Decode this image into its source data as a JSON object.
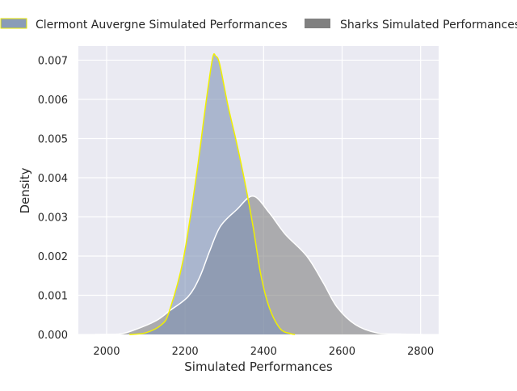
{
  "chart_data": {
    "type": "area",
    "title": "",
    "xlabel": "Simulated Performances",
    "ylabel": "Density",
    "xlim": [
      1928,
      2846
    ],
    "ylim": [
      0,
      0.00736
    ],
    "xticks": [
      2000,
      2200,
      2400,
      2600,
      2800
    ],
    "xtick_labels": [
      "2000",
      "2200",
      "2400",
      "2600",
      "2800"
    ],
    "yticks": [
      0,
      0.001,
      0.002,
      0.003,
      0.004,
      0.005,
      0.006,
      0.007
    ],
    "ytick_labels": [
      "0.000",
      "0.001",
      "0.002",
      "0.003",
      "0.004",
      "0.005",
      "0.006",
      "0.007"
    ],
    "grid": true,
    "legend_placement": "top (outside, above axes)",
    "series": [
      {
        "name": "Clermont Auvergne Simulated Performances",
        "fill": "#7f93b5",
        "edge": "#f0f000",
        "x": [
          2058,
          2099,
          2140,
          2160,
          2195,
          2228,
          2253,
          2270,
          2278,
          2288,
          2309,
          2331,
          2352,
          2373,
          2393,
          2414,
          2442,
          2469,
          2480
        ],
        "y": [
          0,
          4e-05,
          0.00025,
          0.0006,
          0.0019,
          0.004,
          0.0059,
          0.00705,
          0.0071,
          0.0069,
          0.00585,
          0.0049,
          0.0039,
          0.00276,
          0.00152,
          0.0007,
          0.00015,
          2e-05,
          0
        ]
      },
      {
        "name": "Sharks Simulated Performances",
        "fill": "#808080",
        "edge": "#ffffff",
        "x": [
          1970,
          2031,
          2072,
          2126,
          2160,
          2208,
          2237,
          2263,
          2290,
          2331,
          2373,
          2414,
          2455,
          2510,
          2552,
          2587,
          2634,
          2689,
          2750,
          2805
        ],
        "y": [
          0,
          1e-05,
          0.00012,
          0.00035,
          0.0006,
          0.00097,
          0.00146,
          0.00214,
          0.00276,
          0.00318,
          0.00353,
          0.00311,
          0.00256,
          0.002,
          0.00132,
          0.0007,
          0.00025,
          4e-05,
          1e-05,
          0
        ]
      }
    ]
  }
}
